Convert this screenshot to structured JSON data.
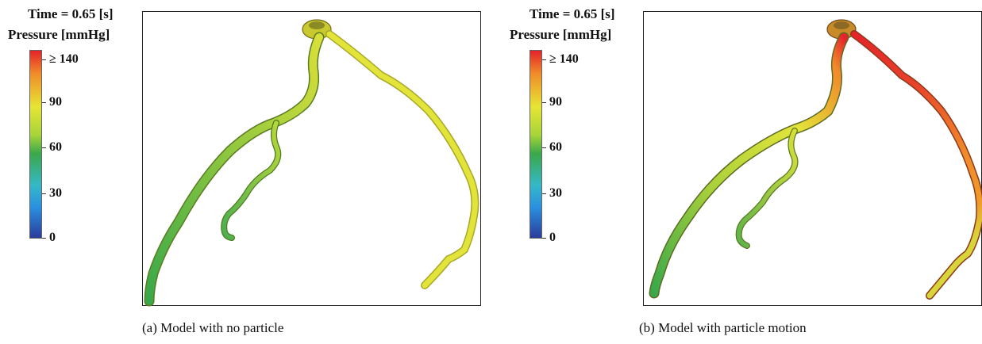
{
  "panels": [
    {
      "time_label": "Time = 0.65 [s]",
      "pressure_label": "Pressure [mmHg]",
      "ticks": [
        "≥ 140",
        "90",
        "60",
        "30",
        "0"
      ],
      "caption": "(a)  Model with no particle"
    },
    {
      "time_label": "Time = 0.65 [s]",
      "pressure_label": "Pressure [mmHg]",
      "ticks": [
        "≥ 140",
        "90",
        "60",
        "30",
        "0"
      ],
      "caption": "(b)  Model with particle motion"
    }
  ],
  "colors": {
    "scale_top": "#e4232a",
    "scale_orange": "#f08a2a",
    "scale_yellow": "#e6e535",
    "scale_green": "#3aa84a",
    "scale_cyan": "#35b8c8",
    "scale_blue": "#2a8fe0",
    "scale_bottom": "#2b3c9a"
  }
}
